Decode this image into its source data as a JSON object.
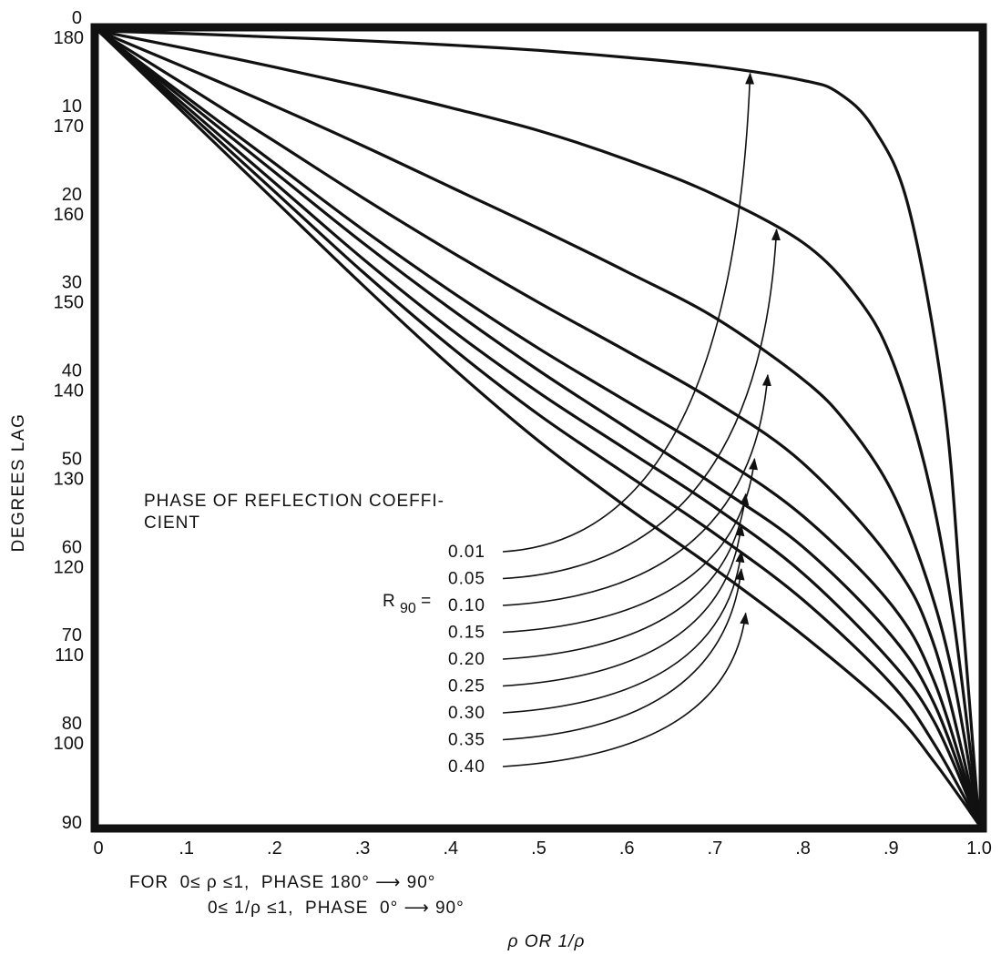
{
  "chart_data": {
    "type": "line",
    "title": "PHASE OF REFLECTION COEFFICIENT",
    "title_line1": "PHASE OF REFLECTION COEFFI-",
    "title_line2": "CIENT",
    "ylabel": "DEGREES LAG",
    "xlabel": "ρ OR 1/ρ",
    "xlim": [
      0,
      1.0
    ],
    "ylim": [
      0,
      90
    ],
    "x_ticks": [
      "0",
      ".1",
      ".2",
      ".3",
      ".4",
      ".5",
      ".6",
      ".7",
      ".8",
      ".9",
      "1.0"
    ],
    "y_ticks_top": [
      "0",
      "10",
      "20",
      "30",
      "40",
      "50",
      "60",
      "70",
      "80",
      "90"
    ],
    "y_ticks_bottom": [
      "180",
      "170",
      "160",
      "150",
      "140",
      "130",
      "120",
      "110",
      "100",
      ""
    ],
    "parameter_prefix": "R",
    "parameter_subscript": "90",
    "parameter_equals": "=",
    "notes": [
      "FOR  0≤ ρ ≤1,  PHASE 180° ⟶ 90°",
      "0≤ 1/ρ ≤1,  PHASE  0° ⟶ 90°"
    ],
    "grid": false,
    "series": [
      {
        "name": "0.01",
        "x": [
          0,
          0.1,
          0.2,
          0.3,
          0.4,
          0.5,
          0.6,
          0.7,
          0.8,
          0.84,
          0.88,
          0.92,
          0.96,
          0.98,
          1.0
        ],
        "y": [
          0,
          0.3,
          0.7,
          1.1,
          1.6,
          2.2,
          3.0,
          4.0,
          5.6,
          7.0,
          11.0,
          20.0,
          42.0,
          65.0,
          90.0
        ]
      },
      {
        "name": "0.05",
        "x": [
          0,
          0.1,
          0.2,
          0.3,
          0.4,
          0.5,
          0.6,
          0.7,
          0.8,
          0.86,
          0.9,
          0.94,
          0.97,
          1.0
        ],
        "y": [
          0,
          2.0,
          4.1,
          6.3,
          8.7,
          11.3,
          14.6,
          18.6,
          24.0,
          30.0,
          37.0,
          50.0,
          66.0,
          90.0
        ]
      },
      {
        "name": "0.10",
        "x": [
          0,
          0.1,
          0.2,
          0.3,
          0.4,
          0.5,
          0.6,
          0.7,
          0.8,
          0.85,
          0.9,
          0.94,
          0.97,
          1.0
        ],
        "y": [
          0,
          4.2,
          8.5,
          13.0,
          17.7,
          22.4,
          27.3,
          32.5,
          39.5,
          44.5,
          52.0,
          62.0,
          73.0,
          90.0
        ]
      },
      {
        "name": "0.15",
        "x": [
          0,
          0.1,
          0.2,
          0.3,
          0.4,
          0.5,
          0.6,
          0.7,
          0.8,
          0.9,
          0.95,
          1.0
        ],
        "y": [
          0,
          6.2,
          12.5,
          18.9,
          25.0,
          30.8,
          36.3,
          42.0,
          49.0,
          60.0,
          70.0,
          90.0
        ]
      },
      {
        "name": "0.20",
        "x": [
          0,
          0.1,
          0.2,
          0.3,
          0.4,
          0.5,
          0.6,
          0.7,
          0.8,
          0.9,
          0.95,
          1.0
        ],
        "y": [
          0,
          7.5,
          15.0,
          22.5,
          29.5,
          36.0,
          42.0,
          48.0,
          55.0,
          65.0,
          74.0,
          90.0
        ]
      },
      {
        "name": "0.25",
        "x": [
          0,
          0.1,
          0.2,
          0.3,
          0.4,
          0.5,
          0.6,
          0.7,
          0.8,
          0.9,
          0.95,
          1.0
        ],
        "y": [
          0,
          8.0,
          16.0,
          24.0,
          31.5,
          38.5,
          45.0,
          51.5,
          58.5,
          68.5,
          76.5,
          90.0
        ]
      },
      {
        "name": "0.30",
        "x": [
          0,
          0.1,
          0.2,
          0.3,
          0.4,
          0.5,
          0.6,
          0.7,
          0.8,
          0.9,
          0.95,
          1.0
        ],
        "y": [
          0,
          8.6,
          17.2,
          25.8,
          33.8,
          41.0,
          47.5,
          54.0,
          61.5,
          71.5,
          78.5,
          90.0
        ]
      },
      {
        "name": "0.35",
        "x": [
          0,
          0.1,
          0.2,
          0.3,
          0.4,
          0.5,
          0.6,
          0.7,
          0.8,
          0.9,
          0.95,
          1.0
        ],
        "y": [
          0,
          9.1,
          18.2,
          27.3,
          35.8,
          43.5,
          50.3,
          57.0,
          64.5,
          74.0,
          81.0,
          90.0
        ]
      },
      {
        "name": "0.40",
        "x": [
          0,
          0.1,
          0.2,
          0.3,
          0.4,
          0.5,
          0.6,
          0.7,
          0.8,
          0.9,
          0.95,
          1.0
        ],
        "y": [
          0,
          9.6,
          19.2,
          28.8,
          38.0,
          46.5,
          54.0,
          61.0,
          68.5,
          77.0,
          83.0,
          90.0
        ]
      }
    ],
    "arrow_targets": [
      {
        "name": "0.01",
        "x": 0.74,
        "y": 4.8
      },
      {
        "name": "0.05",
        "x": 0.77,
        "y": 22.5
      },
      {
        "name": "0.10",
        "x": 0.76,
        "y": 39.0
      },
      {
        "name": "0.15",
        "x": 0.745,
        "y": 48.5
      },
      {
        "name": "0.20",
        "x": 0.735,
        "y": 52.5
      },
      {
        "name": "0.25",
        "x": 0.73,
        "y": 56.0
      },
      {
        "name": "0.30",
        "x": 0.73,
        "y": 59.0
      },
      {
        "name": "0.35",
        "x": 0.73,
        "y": 61.0
      },
      {
        "name": "0.40",
        "x": 0.735,
        "y": 66.0
      }
    ]
  }
}
